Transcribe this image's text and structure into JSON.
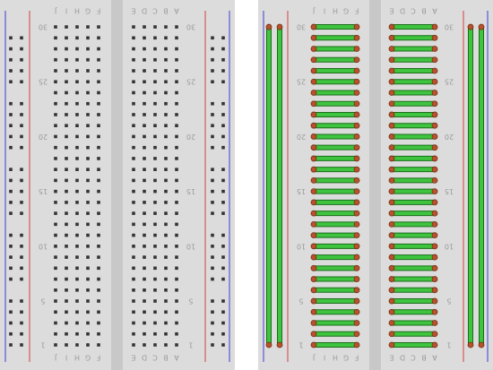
{
  "row_labels": [
    "1",
    "5",
    "10",
    "15",
    "20",
    "25",
    "30"
  ],
  "left_block_letters": [
    "J",
    "I",
    "H",
    "G",
    "F"
  ],
  "right_block_letters": [
    "E",
    "D",
    "C",
    "B",
    "A"
  ]
}
